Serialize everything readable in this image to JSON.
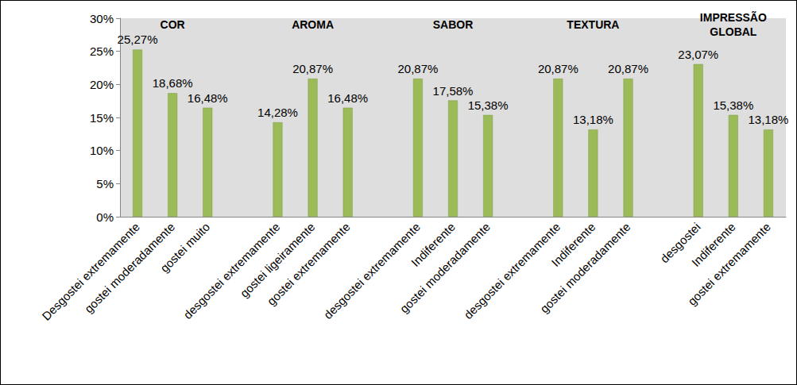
{
  "chart_data": {
    "type": "bar",
    "categories": [
      "Desgostei extremamente",
      "gostei moderadamente",
      "gostei muito",
      null,
      "desgostei extremamente",
      "gostei ligeiramente",
      "gostei extremamente",
      null,
      "desgostei extremamente",
      "Indiferente",
      "gostei moderadamente",
      null,
      "desgostei extremamente",
      "Indiferente",
      "gostei moderadamente",
      null,
      "desgostei",
      "Indiferente",
      "gostei extremamente"
    ],
    "groups": [
      "COR",
      "COR",
      "COR",
      null,
      "AROMA",
      "AROMA",
      "AROMA",
      null,
      "SABOR",
      "SABOR",
      "SABOR",
      null,
      "TEXTURA",
      "TEXTURA",
      "TEXTURA",
      null,
      "IMPRESSÃO GLOBAL",
      "IMPRESSÃO GLOBAL",
      "IMPRESSÃO GLOBAL"
    ],
    "values": [
      25.27,
      18.68,
      16.48,
      null,
      14.28,
      20.87,
      16.48,
      null,
      20.87,
      17.58,
      15.38,
      null,
      20.87,
      13.18,
      20.87,
      null,
      23.07,
      15.38,
      13.18
    ],
    "value_labels": [
      "25,27%",
      "18,68%",
      "16,48%",
      null,
      "14,28%",
      "20,87%",
      "16,48%",
      null,
      "20,87%",
      "17,58%",
      "15,38%",
      null,
      "20,87%",
      "13,18%",
      "20,87%",
      null,
      "23,07%",
      "15,38%",
      "13,18%"
    ],
    "color": "#9bbb59",
    "ylim": [
      0,
      30
    ],
    "yticks": [
      {
        "value": 0,
        "label": "0%"
      },
      {
        "value": 5,
        "label": "5%"
      },
      {
        "value": 10,
        "label": "10%"
      },
      {
        "value": 15,
        "label": "15%"
      },
      {
        "value": 20,
        "label": "20%"
      },
      {
        "value": 25,
        "label": "25%"
      },
      {
        "value": 30,
        "label": "30%"
      }
    ],
    "grid": false,
    "data_labels": true
  }
}
